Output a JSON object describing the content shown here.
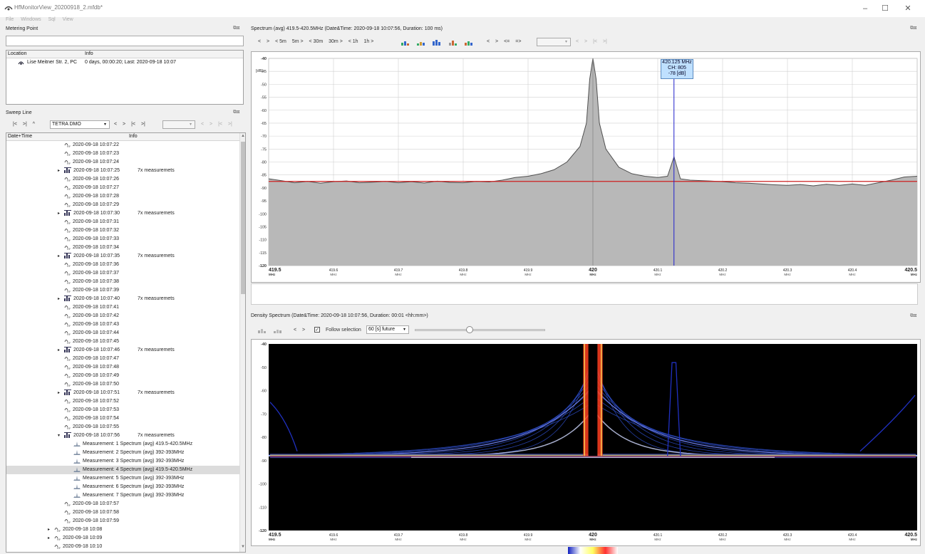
{
  "window": {
    "title": "HfMonitorView_20200918_2.mfdb*",
    "minimize": "–",
    "maximize": "☐",
    "close": "✕"
  },
  "menu": [
    "File",
    "Windows",
    "Sql",
    "View"
  ],
  "metering_point": {
    "title": "Metering Point",
    "search_value": "",
    "col_location": "Location",
    "col_info": "Info",
    "row": {
      "location": "Lise Meitner Str. 2, PC",
      "info": "0 days, 00:00:20; Last: 2020-09-18 10:07"
    }
  },
  "sweep_line": {
    "title": "Sweep Line",
    "nav": [
      "|<",
      ">|",
      "^"
    ],
    "filter_value": "TETRA DMO",
    "nav2": [
      "<",
      ">",
      "|<",
      ">|"
    ],
    "nav3": [
      "<",
      ">",
      "|<",
      ">|"
    ],
    "col_datetime": "Date+Time",
    "col_info": "Info",
    "rows": [
      {
        "t": "2020-09-18 10:07:22",
        "info": "",
        "group": false
      },
      {
        "t": "2020-09-18 10:07:23",
        "info": "",
        "group": false
      },
      {
        "t": "2020-09-18 10:07:24",
        "info": "",
        "group": false
      },
      {
        "t": "2020-09-18 10:07:25",
        "info": "7x measuremets",
        "group": true
      },
      {
        "t": "2020-09-18 10:07:26",
        "info": "",
        "group": false
      },
      {
        "t": "2020-09-18 10:07:27",
        "info": "",
        "group": false
      },
      {
        "t": "2020-09-18 10:07:28",
        "info": "",
        "group": false
      },
      {
        "t": "2020-09-18 10:07:29",
        "info": "",
        "group": false
      },
      {
        "t": "2020-09-18 10:07:30",
        "info": "7x measuremets",
        "group": true
      },
      {
        "t": "2020-09-18 10:07:31",
        "info": "",
        "group": false
      },
      {
        "t": "2020-09-18 10:07:32",
        "info": "",
        "group": false
      },
      {
        "t": "2020-09-18 10:07:33",
        "info": "",
        "group": false
      },
      {
        "t": "2020-09-18 10:07:34",
        "info": "",
        "group": false
      },
      {
        "t": "2020-09-18 10:07:35",
        "info": "7x measuremets",
        "group": true
      },
      {
        "t": "2020-09-18 10:07:36",
        "info": "",
        "group": false
      },
      {
        "t": "2020-09-18 10:07:37",
        "info": "",
        "group": false
      },
      {
        "t": "2020-09-18 10:07:38",
        "info": "",
        "group": false
      },
      {
        "t": "2020-09-18 10:07:39",
        "info": "",
        "group": false
      },
      {
        "t": "2020-09-18 10:07:40",
        "info": "7x measuremets",
        "group": true
      },
      {
        "t": "2020-09-18 10:07:41",
        "info": "",
        "group": false
      },
      {
        "t": "2020-09-18 10:07:42",
        "info": "",
        "group": false
      },
      {
        "t": "2020-09-18 10:07:43",
        "info": "",
        "group": false
      },
      {
        "t": "2020-09-18 10:07:44",
        "info": "",
        "group": false
      },
      {
        "t": "2020-09-18 10:07:45",
        "info": "",
        "group": false
      },
      {
        "t": "2020-09-18 10:07:46",
        "info": "7x measuremets",
        "group": true
      },
      {
        "t": "2020-09-18 10:07:47",
        "info": "",
        "group": false
      },
      {
        "t": "2020-09-18 10:07:48",
        "info": "",
        "group": false
      },
      {
        "t": "2020-09-18 10:07:49",
        "info": "",
        "group": false
      },
      {
        "t": "2020-09-18 10:07:50",
        "info": "",
        "group": false
      },
      {
        "t": "2020-09-18 10:07:51",
        "info": "7x measuremets",
        "group": true
      },
      {
        "t": "2020-09-18 10:07:52",
        "info": "",
        "group": false
      },
      {
        "t": "2020-09-18 10:07:53",
        "info": "",
        "group": false
      },
      {
        "t": "2020-09-18 10:07:54",
        "info": "",
        "group": false
      },
      {
        "t": "2020-09-18 10:07:55",
        "info": "",
        "group": false
      },
      {
        "t": "2020-09-18 10:07:56",
        "info": "7x measuremets",
        "group": true,
        "expanded": true
      }
    ],
    "measurements": [
      {
        "label": "Measurement: 1",
        "desc": "Spectrum (avg) 419.5-420.5MHz"
      },
      {
        "label": "Measurement: 2",
        "desc": "Spectrum (avg) 392-393MHz"
      },
      {
        "label": "Measurement: 3",
        "desc": "Spectrum (avg) 392-393MHz"
      },
      {
        "label": "Measurement: 4",
        "desc": "Spectrum (avg) 419.5-420.5MHz",
        "selected": true
      },
      {
        "label": "Measurement: 5",
        "desc": "Spectrum (avg) 392-393MHz"
      },
      {
        "label": "Measurement: 6",
        "desc": "Spectrum (avg) 392-393MHz"
      },
      {
        "label": "Measurement: 7",
        "desc": "Spectrum (avg) 392-393MHz"
      }
    ],
    "after_rows": [
      "2020-09-18 10:07:57",
      "2020-09-18 10:07:58",
      "2020-09-18 10:07:59"
    ],
    "minute_rows": [
      "2020-09-18 10:08",
      "2020-09-18 10:09",
      "2020-09-18 10:10"
    ]
  },
  "spectrum": {
    "title": "Spectrum (avg) 419.5-420.5MHz  (Date&Time: 2020-09-18 10:07:56, Duration: 100 ms)",
    "toolbar": [
      "<",
      ">",
      "< 5m",
      "5m >",
      "< 30m",
      "30m >",
      "< 1h",
      "1h >"
    ],
    "toolbar2": [
      "<",
      ">",
      "<=",
      "=>"
    ],
    "toolbar3": [
      "<",
      ">",
      "|<",
      ">|"
    ],
    "unit": "[dB]",
    "marker": {
      "freq": "420.125 MHz",
      "ch": "CH: 805",
      "level": "-78 [dB]"
    }
  },
  "density": {
    "title": "Density Spectrum  (Date&Time: 2020-09-18 10:07:56, Duration: 00:01 <hh:mm>)",
    "nav": [
      "<",
      ">"
    ],
    "follow_label": "Follow selection",
    "follow_check": "✓",
    "future_value": "60 [s] future"
  },
  "chart_data": [
    {
      "type": "area",
      "x_unit": "MHz",
      "xlim": [
        419.5,
        420.5
      ],
      "ylim": [
        -120,
        -40
      ],
      "yticks": [
        -40,
        -45,
        -50,
        -55,
        -60,
        -65,
        -70,
        -75,
        -80,
        -85,
        -90,
        -95,
        -100,
        -105,
        -110,
        -115,
        -120
      ],
      "xticks": [
        "419.5",
        "419.6",
        "419.7",
        "419.8",
        "419.9",
        "420",
        "420.1",
        "420.2",
        "420.3",
        "420.4",
        "420.5"
      ],
      "threshold": -87.5,
      "x": [
        419.5,
        419.52,
        419.54,
        419.56,
        419.58,
        419.6,
        419.62,
        419.64,
        419.66,
        419.68,
        419.7,
        419.72,
        419.74,
        419.76,
        419.78,
        419.8,
        419.82,
        419.84,
        419.86,
        419.88,
        419.9,
        419.92,
        419.94,
        419.96,
        419.98,
        419.99,
        419.995,
        420,
        420.005,
        420.01,
        420.02,
        420.04,
        420.06,
        420.08,
        420.1,
        420.115,
        420.125,
        420.135,
        420.15,
        420.18,
        420.2,
        420.22,
        420.24,
        420.26,
        420.28,
        420.3,
        420.32,
        420.34,
        420.36,
        420.38,
        420.4,
        420.42,
        420.44,
        420.46,
        420.48,
        420.5
      ],
      "y": [
        -86.5,
        -87.2,
        -88.0,
        -87.5,
        -88.2,
        -87.6,
        -87.3,
        -88.0,
        -87.8,
        -87.5,
        -88.0,
        -87.6,
        -88.1,
        -87.4,
        -87.9,
        -88.0,
        -87.5,
        -87.7,
        -87.0,
        -86.0,
        -85.5,
        -84.5,
        -83.0,
        -80.0,
        -74.0,
        -65.0,
        -48.0,
        -40.0,
        -48.0,
        -65.0,
        -75.0,
        -82.0,
        -84.5,
        -85.5,
        -86.0,
        -85.5,
        -78.0,
        -86.5,
        -87.0,
        -87.3,
        -87.6,
        -88.0,
        -88.2,
        -88.5,
        -88.8,
        -89.0,
        -88.7,
        -89.2,
        -88.6,
        -89.0,
        -88.5,
        -89.0,
        -88.0,
        -87.0,
        -85.8,
        -85.5
      ]
    },
    {
      "type": "heatmap",
      "x_unit": "MHz",
      "xlim": [
        419.5,
        420.5
      ],
      "ylim": [
        -120,
        -40
      ],
      "yticks": [
        -40,
        -50,
        -60,
        -70,
        -80,
        -90,
        -100,
        -110,
        -120
      ],
      "xticks": [
        "419.5",
        "419.6",
        "419.7",
        "419.8",
        "419.9",
        "420",
        "420.1",
        "420.2",
        "420.3",
        "420.4",
        "420.5"
      ]
    }
  ],
  "colors": {
    "threshold": "#cc2020",
    "marker": "#2020cc",
    "fill": "#b8b8b8",
    "trace": "#505050",
    "heatmap_bg": "#000000"
  }
}
